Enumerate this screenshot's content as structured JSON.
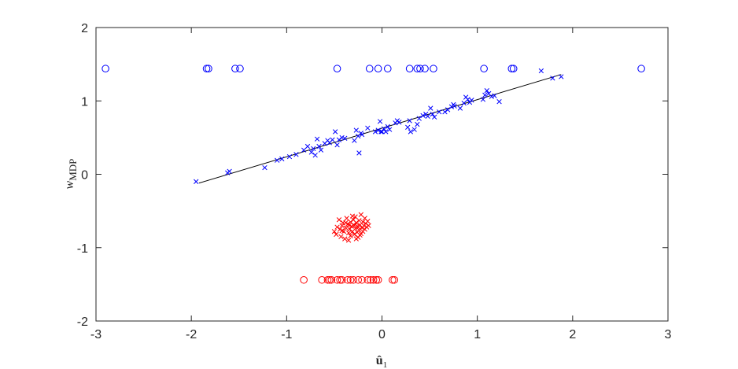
{
  "chart_data": {
    "type": "scatter",
    "xlabel": "û",
    "xlabel_sub": "1",
    "ylabel": "w",
    "ylabel_sub": "MDP",
    "xlim": [
      -3,
      3
    ],
    "ylim": [
      -2,
      2
    ],
    "x_ticks": [
      -3,
      -2,
      -1,
      0,
      1,
      2,
      3
    ],
    "x_tick_labels": [
      "-3",
      "-2",
      "-1",
      "0",
      "1",
      "2",
      "3"
    ],
    "y_ticks": [
      -2,
      -1,
      0,
      1,
      2
    ],
    "y_tick_labels": [
      "-2",
      "-1",
      "0",
      "1",
      "2"
    ],
    "grid": false,
    "colors": {
      "blue": "#0000ff",
      "red": "#ff0000",
      "line": "#000000",
      "axis": "#262626"
    },
    "series": [
      {
        "marker": "o",
        "color": "#0000ff",
        "points": [
          [
            -2.9,
            1.44
          ],
          [
            -1.84,
            1.44
          ],
          [
            -1.82,
            1.44
          ],
          [
            -1.54,
            1.44
          ],
          [
            -1.49,
            1.44
          ],
          [
            -0.47,
            1.44
          ],
          [
            -0.13,
            1.44
          ],
          [
            -0.04,
            1.44
          ],
          [
            0.06,
            1.44
          ],
          [
            0.29,
            1.44
          ],
          [
            0.37,
            1.44
          ],
          [
            0.4,
            1.44
          ],
          [
            0.45,
            1.44
          ],
          [
            0.54,
            1.44
          ],
          [
            1.07,
            1.44
          ],
          [
            1.36,
            1.44
          ],
          [
            1.38,
            1.44
          ],
          [
            2.72,
            1.44
          ]
        ]
      },
      {
        "marker": "x",
        "color": "#0000ff",
        "points": [
          [
            -1.95,
            -0.1
          ],
          [
            -1.62,
            0.02
          ],
          [
            -1.6,
            0.04
          ],
          [
            -1.23,
            0.09
          ],
          [
            -1.1,
            0.19
          ],
          [
            -1.05,
            0.21
          ],
          [
            -0.97,
            0.24
          ],
          [
            -0.9,
            0.27
          ],
          [
            -0.82,
            0.33
          ],
          [
            -0.78,
            0.38
          ],
          [
            -0.74,
            0.3
          ],
          [
            -0.72,
            0.35
          ],
          [
            -0.7,
            0.26
          ],
          [
            -0.68,
            0.48
          ],
          [
            -0.66,
            0.38
          ],
          [
            -0.64,
            0.33
          ],
          [
            -0.6,
            0.42
          ],
          [
            -0.57,
            0.46
          ],
          [
            -0.55,
            0.43
          ],
          [
            -0.52,
            0.47
          ],
          [
            -0.49,
            0.58
          ],
          [
            -0.47,
            0.4
          ],
          [
            -0.45,
            0.47
          ],
          [
            -0.42,
            0.5
          ],
          [
            -0.39,
            0.49
          ],
          [
            -0.29,
            0.46
          ],
          [
            -0.27,
            0.6
          ],
          [
            -0.25,
            0.52
          ],
          [
            -0.24,
            0.29
          ],
          [
            -0.22,
            0.56
          ],
          [
            -0.21,
            0.54
          ],
          [
            -0.15,
            0.63
          ],
          [
            -0.07,
            0.58
          ],
          [
            -0.04,
            0.6
          ],
          [
            -0.02,
            0.72
          ],
          [
            -0.01,
            0.58
          ],
          [
            0.0,
            0.58
          ],
          [
            0.02,
            0.62
          ],
          [
            0.04,
            0.58
          ],
          [
            0.06,
            0.65
          ],
          [
            0.08,
            0.61
          ],
          [
            0.14,
            0.7
          ],
          [
            0.16,
            0.73
          ],
          [
            0.18,
            0.71
          ],
          [
            0.27,
            0.64
          ],
          [
            0.29,
            0.73
          ],
          [
            0.3,
            0.58
          ],
          [
            0.34,
            0.61
          ],
          [
            0.37,
            0.68
          ],
          [
            0.39,
            0.76
          ],
          [
            0.43,
            0.8
          ],
          [
            0.46,
            0.82
          ],
          [
            0.48,
            0.79
          ],
          [
            0.51,
            0.9
          ],
          [
            0.53,
            0.82
          ],
          [
            0.55,
            0.78
          ],
          [
            0.6,
            0.85
          ],
          [
            0.66,
            0.85
          ],
          [
            0.69,
            0.88
          ],
          [
            0.73,
            0.92
          ],
          [
            0.75,
            0.95
          ],
          [
            0.76,
            0.93
          ],
          [
            0.82,
            0.9
          ],
          [
            0.86,
            0.97
          ],
          [
            0.88,
            1.05
          ],
          [
            0.9,
            1.02
          ],
          [
            0.92,
            0.98
          ],
          [
            0.94,
            1.01
          ],
          [
            1.06,
            1.02
          ],
          [
            1.08,
            1.08
          ],
          [
            1.1,
            1.14
          ],
          [
            1.12,
            1.1
          ],
          [
            1.15,
            1.06
          ],
          [
            1.18,
            1.07
          ],
          [
            1.23,
            0.99
          ],
          [
            1.67,
            1.41
          ],
          [
            1.79,
            1.31
          ],
          [
            1.88,
            1.33
          ]
        ]
      },
      {
        "marker": "o",
        "color": "#ff0000",
        "points": [
          [
            -0.82,
            -1.44
          ],
          [
            -0.63,
            -1.44
          ],
          [
            -0.57,
            -1.44
          ],
          [
            -0.55,
            -1.44
          ],
          [
            -0.53,
            -1.44
          ],
          [
            -0.47,
            -1.44
          ],
          [
            -0.44,
            -1.44
          ],
          [
            -0.42,
            -1.44
          ],
          [
            -0.36,
            -1.44
          ],
          [
            -0.33,
            -1.44
          ],
          [
            -0.3,
            -1.44
          ],
          [
            -0.25,
            -1.44
          ],
          [
            -0.21,
            -1.44
          ],
          [
            -0.15,
            -1.44
          ],
          [
            -0.12,
            -1.44
          ],
          [
            -0.09,
            -1.44
          ],
          [
            -0.06,
            -1.44
          ],
          [
            -0.04,
            -1.44
          ],
          [
            0.11,
            -1.44
          ],
          [
            0.13,
            -1.44
          ]
        ]
      },
      {
        "marker": "x",
        "color": "#ff0000",
        "points": [
          [
            -0.5,
            -0.78
          ],
          [
            -0.48,
            -0.82
          ],
          [
            -0.47,
            -0.72
          ],
          [
            -0.45,
            -0.62
          ],
          [
            -0.44,
            -0.75
          ],
          [
            -0.43,
            -0.85
          ],
          [
            -0.42,
            -0.7
          ],
          [
            -0.41,
            -0.66
          ],
          [
            -0.4,
            -0.78
          ],
          [
            -0.39,
            -0.88
          ],
          [
            -0.38,
            -0.73
          ],
          [
            -0.37,
            -0.6
          ],
          [
            -0.36,
            -0.68
          ],
          [
            -0.35,
            -0.8
          ],
          [
            -0.34,
            -0.75
          ],
          [
            -0.33,
            -0.65
          ],
          [
            -0.33,
            -0.84
          ],
          [
            -0.32,
            -0.71
          ],
          [
            -0.31,
            -0.78
          ],
          [
            -0.3,
            -0.62
          ],
          [
            -0.3,
            -0.69
          ],
          [
            -0.29,
            -0.82
          ],
          [
            -0.28,
            -0.74
          ],
          [
            -0.28,
            -0.58
          ],
          [
            -0.27,
            -0.66
          ],
          [
            -0.26,
            -0.79
          ],
          [
            -0.26,
            -0.71
          ],
          [
            -0.25,
            -0.86
          ],
          [
            -0.24,
            -0.63
          ],
          [
            -0.24,
            -0.76
          ],
          [
            -0.23,
            -0.69
          ],
          [
            -0.22,
            -0.55
          ],
          [
            -0.22,
            -0.81
          ],
          [
            -0.21,
            -0.73
          ],
          [
            -0.2,
            -0.65
          ],
          [
            -0.2,
            -0.78
          ],
          [
            -0.19,
            -0.7
          ],
          [
            -0.18,
            -0.6
          ],
          [
            -0.18,
            -0.75
          ],
          [
            -0.17,
            -0.67
          ],
          [
            -0.16,
            -0.72
          ],
          [
            -0.15,
            -0.64
          ],
          [
            -0.14,
            -0.7
          ],
          [
            -0.35,
            -0.9
          ],
          [
            -0.31,
            -0.57
          ],
          [
            -0.27,
            -0.88
          ],
          [
            -0.23,
            -0.83
          ],
          [
            -0.38,
            -0.66
          ],
          [
            -0.29,
            -0.7
          ],
          [
            -0.25,
            -0.72
          ],
          [
            -0.34,
            -0.69
          ],
          [
            -0.42,
            -0.77
          ]
        ]
      }
    ],
    "fit_line": {
      "color": "#000000",
      "points": [
        [
          -1.92,
          -0.12
        ],
        [
          1.88,
          1.36
        ]
      ]
    }
  }
}
